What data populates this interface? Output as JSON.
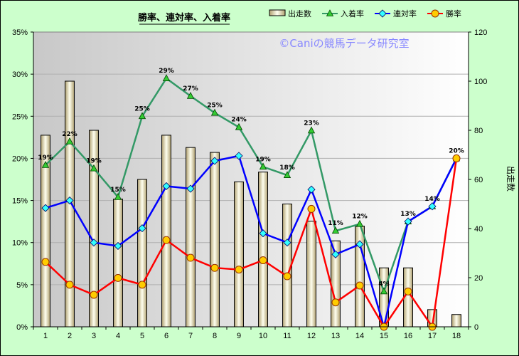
{
  "chart_data": {
    "type": "bar",
    "title": "勝率、連対率、入着率",
    "watermark": "©Caniの競馬データ研究室",
    "categories": [
      "1",
      "2",
      "3",
      "4",
      "5",
      "6",
      "7",
      "8",
      "9",
      "10",
      "11",
      "12",
      "13",
      "14",
      "15",
      "16",
      "17",
      "18"
    ],
    "y_left": {
      "ylim": [
        0,
        35
      ],
      "ticks": [
        "0%",
        "5%",
        "10%",
        "15%",
        "20%",
        "25%",
        "30%",
        "35%"
      ]
    },
    "y_right": {
      "ylabel": "出走数",
      "ylim": [
        0,
        120
      ],
      "ticks": [
        "0",
        "20",
        "40",
        "60",
        "80",
        "100",
        "120"
      ]
    },
    "legend_position": "top",
    "grid": true,
    "series": [
      {
        "name": "出走数",
        "kind": "bar",
        "axis": "right",
        "color": "#eeeebb",
        "values": [
          78,
          100,
          80,
          52,
          60,
          78,
          73,
          71,
          59,
          63,
          50,
          43,
          35,
          41,
          24,
          24,
          7,
          5
        ]
      },
      {
        "name": "入着率",
        "kind": "line",
        "axis": "left",
        "color": "#339966",
        "marker": "triangle",
        "values": [
          19.2,
          22.0,
          18.8,
          15.4,
          25.0,
          29.5,
          27.4,
          25.4,
          23.7,
          19.0,
          18.0,
          23.3,
          11.4,
          12.2,
          4.2,
          12.5,
          14.3,
          20.0
        ],
        "labels": [
          "19%",
          "22%",
          "19%",
          "15%",
          "25%",
          "29%",
          "27%",
          "25%",
          "24%",
          "19%",
          "18%",
          "23%",
          "11%",
          "12%",
          "4%",
          "13%",
          "14%",
          "20%"
        ]
      },
      {
        "name": "連対率",
        "kind": "line",
        "axis": "left",
        "color": "#0000ff",
        "marker": "diamond",
        "values": [
          14.1,
          15.0,
          10.0,
          9.6,
          11.7,
          16.7,
          16.4,
          19.7,
          20.3,
          11.1,
          10.0,
          16.3,
          8.6,
          9.8,
          0.0,
          12.5,
          14.3,
          20.0
        ]
      },
      {
        "name": "勝率",
        "kind": "line",
        "axis": "left",
        "color": "#ff0000",
        "marker": "circle",
        "values": [
          7.7,
          5.0,
          3.8,
          5.8,
          5.0,
          10.3,
          8.2,
          7.0,
          6.8,
          7.9,
          6.0,
          14.0,
          2.9,
          4.9,
          0.0,
          4.2,
          0.0,
          20.0
        ]
      }
    ]
  }
}
